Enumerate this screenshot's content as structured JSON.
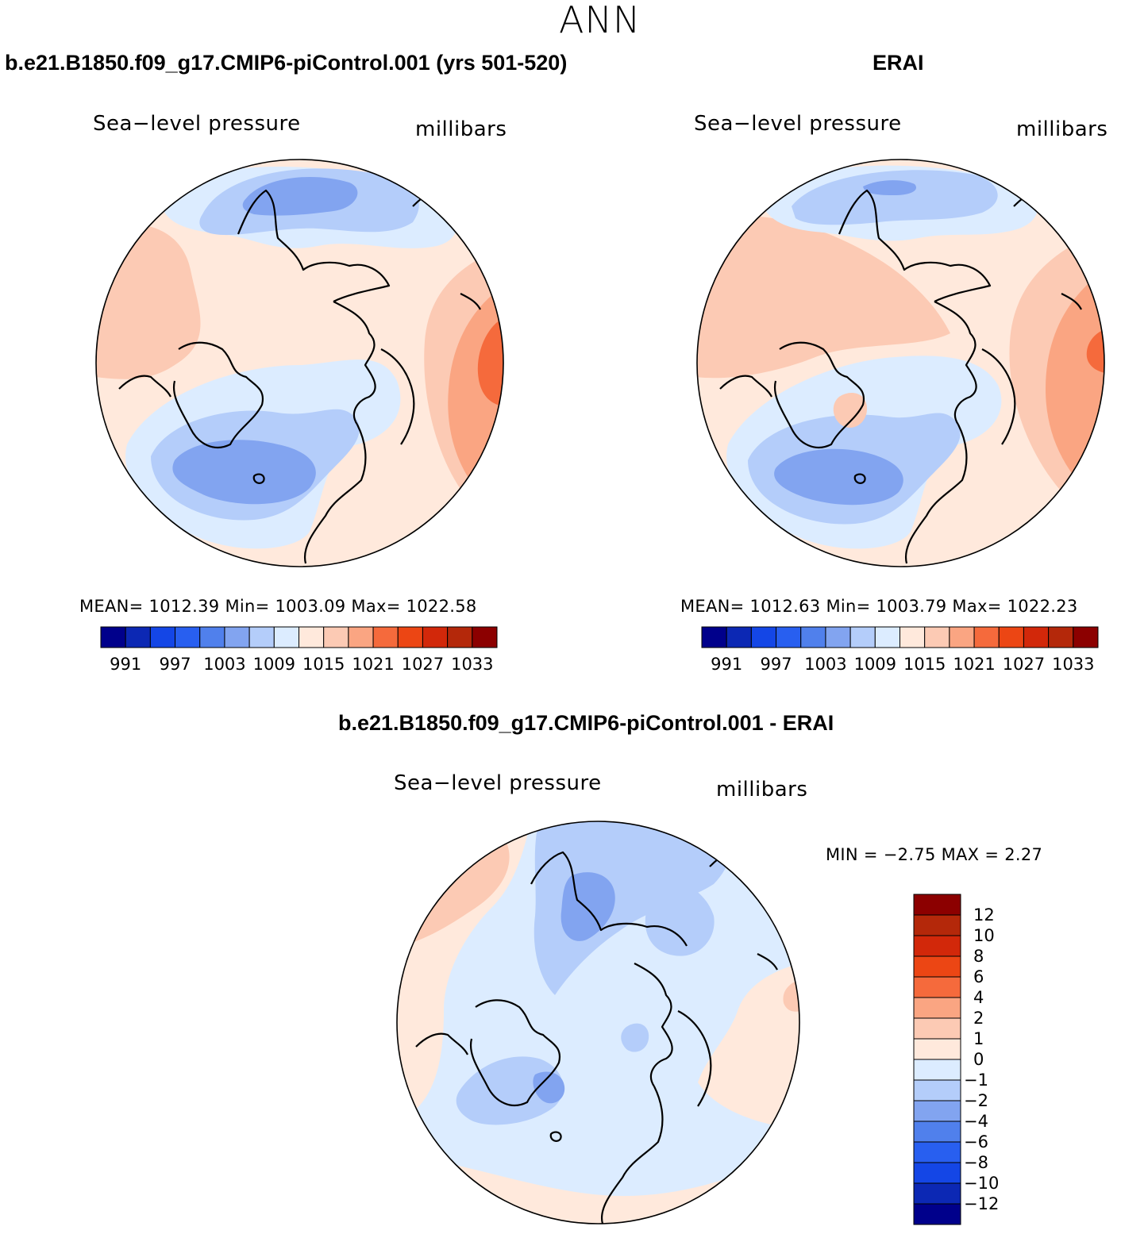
{
  "figure": {
    "suptitle": "ANN"
  },
  "panels": [
    {
      "title": "b.e21.B1850.f09_g17.CMIP6-piControl.001 (yrs 501-520)",
      "left_label": "Sea−level pressure",
      "right_label": "millibars",
      "stats": "MEAN=  1012.39   Min=  1003.09   Max=  1022.58",
      "colorbar": {
        "orientation": "horizontal",
        "colors": [
          "#00008b",
          "#0c28b4",
          "#1446e6",
          "#285ff0",
          "#5080ec",
          "#82a4f0",
          "#b4cdfa",
          "#dcecff",
          "#ffe9dc",
          "#fccab4",
          "#faa582",
          "#f56a3c",
          "#ec4614",
          "#d2280a",
          "#b4280a",
          "#8c0000"
        ],
        "tick_labels": [
          "991",
          "997",
          "1003",
          "1009",
          "1015",
          "1021",
          "1027",
          "1033"
        ]
      }
    },
    {
      "title": "ERAI",
      "left_label": "Sea−level pressure",
      "right_label": "millibars",
      "stats": "MEAN=  1012.63   Min=  1003.79   Max=  1022.23",
      "colorbar": {
        "orientation": "horizontal",
        "colors": [
          "#00008b",
          "#0c28b4",
          "#1446e6",
          "#285ff0",
          "#5080ec",
          "#82a4f0",
          "#b4cdfa",
          "#dcecff",
          "#ffe9dc",
          "#fccab4",
          "#faa582",
          "#f56a3c",
          "#ec4614",
          "#d2280a",
          "#b4280a",
          "#8c0000"
        ],
        "tick_labels": [
          "991",
          "997",
          "1003",
          "1009",
          "1015",
          "1021",
          "1027",
          "1033"
        ]
      }
    },
    {
      "title": "b.e21.B1850.f09_g17.CMIP6-piControl.001 - ERAI",
      "left_label": "Sea−level pressure",
      "right_label": "millibars",
      "stats": "MIN =   −2.75  MAX =    2.27",
      "colorbar": {
        "orientation": "vertical",
        "colors_top_to_bottom": [
          "#8c0000",
          "#b4280a",
          "#d2280a",
          "#ec4614",
          "#f56a3c",
          "#faa582",
          "#fccab4",
          "#ffe9dc",
          "#dcecff",
          "#b4cdfa",
          "#82a4f0",
          "#5080ec",
          "#285ff0",
          "#1446e6",
          "#0c28b4",
          "#00008b"
        ],
        "tick_labels_top_to_bottom": [
          "12",
          "10",
          "8",
          "6",
          "4",
          "2",
          "1",
          "0",
          "−1",
          "−2",
          "−4",
          "−6",
          "−8",
          "−10",
          "−12"
        ]
      }
    }
  ],
  "chart_data": [
    {
      "type": "heatmap",
      "title": "b.e21.B1850.f09_g17.CMIP6-piControl.001 (yrs 501-520)",
      "variable": "Sea−level pressure",
      "units": "millibars",
      "projection": "north polar stereographic",
      "mean": 1012.39,
      "min": 1003.09,
      "max": 1022.58,
      "contour_levels": [
        991,
        994,
        997,
        1000,
        1003,
        1006,
        1009,
        1012,
        1015,
        1018,
        1021,
        1024,
        1027,
        1030,
        1033
      ]
    },
    {
      "type": "heatmap",
      "title": "ERAI",
      "variable": "Sea−level pressure",
      "units": "millibars",
      "projection": "north polar stereographic",
      "mean": 1012.63,
      "min": 1003.79,
      "max": 1022.23,
      "contour_levels": [
        991,
        994,
        997,
        1000,
        1003,
        1006,
        1009,
        1012,
        1015,
        1018,
        1021,
        1024,
        1027,
        1030,
        1033
      ]
    },
    {
      "type": "heatmap",
      "title": "b.e21.B1850.f09_g17.CMIP6-piControl.001 - ERAI",
      "variable": "Sea−level pressure",
      "units": "millibars",
      "projection": "north polar stereographic",
      "min": -2.75,
      "max": 2.27,
      "contour_levels": [
        -12,
        -10,
        -8,
        -6,
        -4,
        -2,
        -1,
        0,
        1,
        2,
        4,
        6,
        8,
        10,
        12
      ]
    }
  ]
}
